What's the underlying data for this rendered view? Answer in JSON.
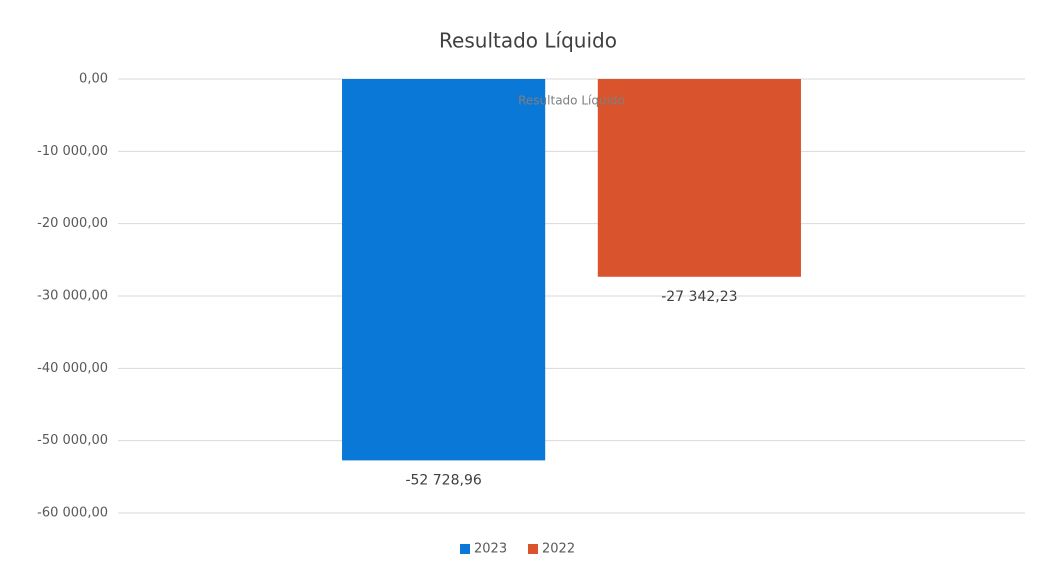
{
  "chart_data": {
    "type": "bar",
    "title": "Resultado Líquido",
    "categories": [
      "Resultado Líquido"
    ],
    "series": [
      {
        "name": "2023",
        "color": "#0a78d6",
        "values": [
          -52728.96
        ],
        "value_labels": [
          "-52 728,96"
        ]
      },
      {
        "name": "2022",
        "color": "#d9542c",
        "values": [
          -27342.23
        ],
        "value_labels": [
          "-27 342,23"
        ]
      }
    ],
    "ylim": [
      -60000,
      0
    ],
    "yticks": [
      {
        "value": 0,
        "label": "0,00"
      },
      {
        "value": -10000,
        "label": "-10 000,00"
      },
      {
        "value": -20000,
        "label": "-20 000,00"
      },
      {
        "value": -30000,
        "label": "-30 000,00"
      },
      {
        "value": -40000,
        "label": "-40 000,00"
      },
      {
        "value": -50000,
        "label": "-50 000,00"
      },
      {
        "value": -60000,
        "label": "-60 000,00"
      }
    ],
    "grid": true,
    "legend": "bottom"
  }
}
